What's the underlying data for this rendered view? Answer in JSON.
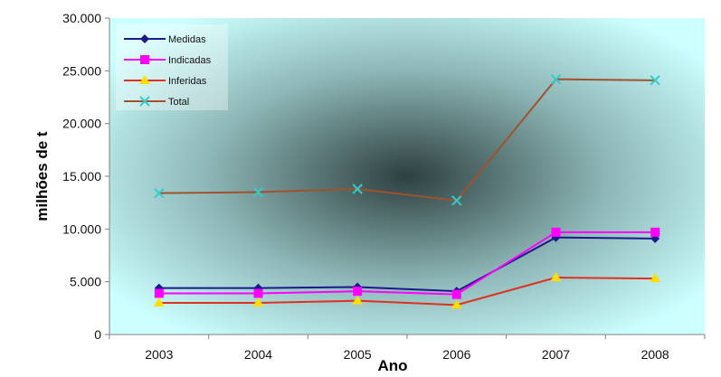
{
  "chart_data": {
    "type": "line",
    "xlabel": "Ano",
    "ylabel": "milhões de t",
    "categories": [
      "2003",
      "2004",
      "2005",
      "2006",
      "2007",
      "2008"
    ],
    "ylim": [
      0,
      30000
    ],
    "yticks": [
      "0",
      "5.000",
      "10.000",
      "15.000",
      "20.000",
      "25.000",
      "30.000"
    ],
    "grid": false,
    "legend_position": "top-left",
    "series": [
      {
        "name": "Medidas",
        "color": "#1a1a8c",
        "marker": "diamond",
        "values": [
          4400,
          4400,
          4500,
          4100,
          9200,
          9100
        ]
      },
      {
        "name": "Indicadas",
        "color": "#ff00ff",
        "marker": "square",
        "values": [
          3900,
          3900,
          4100,
          3800,
          9700,
          9700
        ]
      },
      {
        "name": "Inferidas",
        "color": "#ffdd00",
        "line_color": "#e03020",
        "marker": "triangle",
        "values": [
          3000,
          3000,
          3200,
          2800,
          5400,
          5300
        ]
      },
      {
        "name": "Total",
        "color": "#33cccc",
        "line_color": "#a0522d",
        "marker": "x",
        "values": [
          13400,
          13500,
          13800,
          12700,
          24200,
          24100
        ]
      }
    ]
  }
}
